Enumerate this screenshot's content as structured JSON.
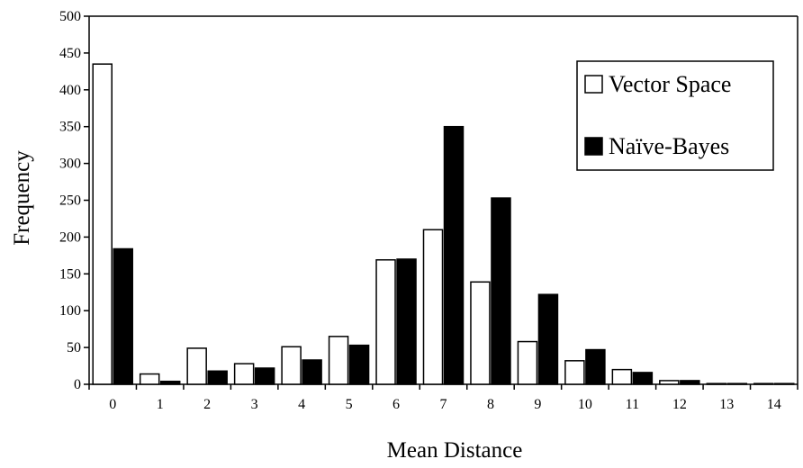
{
  "chart_data": {
    "type": "bar",
    "title": "",
    "xlabel": "Mean Distance",
    "ylabel": "Frequency",
    "ylim": [
      0,
      500
    ],
    "yticks": [
      0,
      50,
      100,
      150,
      200,
      250,
      300,
      350,
      400,
      450,
      500
    ],
    "categories": [
      "0",
      "1",
      "2",
      "3",
      "4",
      "5",
      "6",
      "7",
      "8",
      "9",
      "10",
      "11",
      "12",
      "13",
      "14"
    ],
    "series": [
      {
        "name": "Vector Space",
        "color": "#ffffff",
        "values": [
          435,
          14,
          49,
          28,
          51,
          65,
          169,
          210,
          139,
          58,
          32,
          20,
          5,
          1,
          1
        ]
      },
      {
        "name": "Naïve-Bayes",
        "color": "#000000",
        "values": [
          184,
          4,
          18,
          22,
          33,
          53,
          170,
          350,
          253,
          122,
          47,
          16,
          5,
          1,
          1
        ]
      }
    ],
    "legend_position": "top-right",
    "grid": false
  }
}
